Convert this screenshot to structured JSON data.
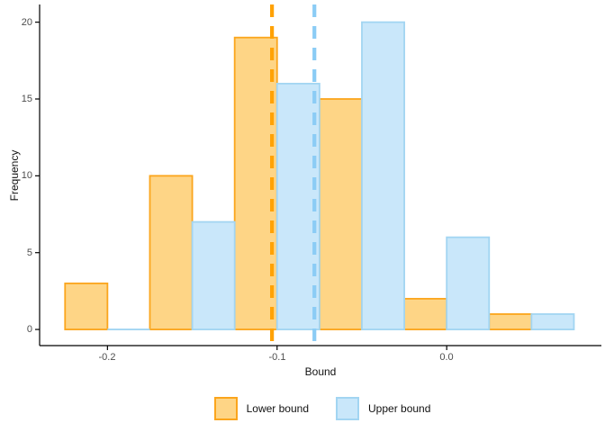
{
  "chart": {
    "axes": {
      "x": {
        "label": "Bound",
        "ticks": [
          -0.2,
          -0.1,
          0.0
        ],
        "tick_labels": [
          "-0.2",
          "-0.1",
          "0.0"
        ],
        "range": [
          -0.24,
          0.0912
        ]
      },
      "y": {
        "label": "Frequency",
        "ticks": [
          0,
          5,
          10,
          15,
          20
        ],
        "tick_labels": [
          "0",
          "5",
          "10",
          "15",
          "20"
        ],
        "range": [
          -1.05,
          21.15
        ]
      }
    },
    "colors": {
      "background": "#ffffff",
      "axis_line": "#000000",
      "tick_text": "#4d4d4d"
    }
  },
  "legend": {
    "items": [
      {
        "label": "Lower bound"
      },
      {
        "label": "Upper bound"
      }
    ]
  },
  "chart_data": {
    "type": "bar",
    "subtype": "dodged-histogram",
    "title": "",
    "xlabel": "Bound",
    "ylabel": "Frequency",
    "ylim": [
      0,
      20
    ],
    "grid": false,
    "legend_position": "bottom",
    "bin_width": 0.05,
    "bin_centers": [
      -0.2,
      -0.15,
      -0.1,
      -0.05,
      0.0,
      0.05
    ],
    "series": [
      {
        "name": "Lower bound",
        "values": [
          3,
          10,
          19,
          15,
          2,
          1
        ],
        "fill": "#FED586",
        "stroke": "#FBA51C",
        "vline": -0.103,
        "vline_color": "#FFA205",
        "vline_style": "dashed"
      },
      {
        "name": "Upper bound",
        "values": [
          0,
          7,
          16,
          20,
          6,
          1
        ],
        "fill": "#C9E7FA",
        "stroke": "#A2D5F2",
        "vline": -0.078,
        "vline_color": "#8BCCF5",
        "vline_style": "dashed"
      }
    ]
  }
}
